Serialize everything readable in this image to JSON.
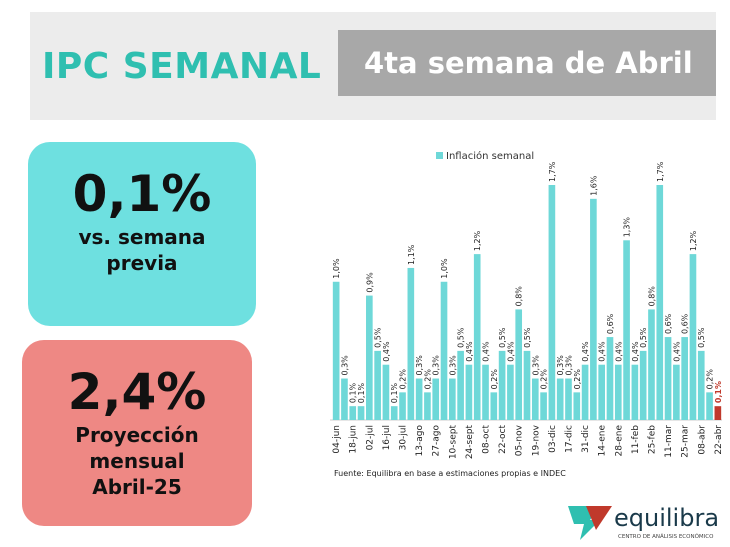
{
  "header": {
    "title": "IPC SEMANAL",
    "subtitle": "4ta semana de Abril"
  },
  "cards": [
    {
      "value": "0,1%",
      "label_lines": [
        "vs. semana",
        "previa"
      ]
    },
    {
      "value": "2,4%",
      "label_lines": [
        "Proyección",
        "mensual",
        "Abril-25"
      ]
    }
  ],
  "chart_data": {
    "type": "bar",
    "legend": "Inflación semanal",
    "color": "#6ed8d8",
    "last_color": "#c0392b",
    "categories": [
      "04-jun",
      null,
      "18-jun",
      null,
      "02-jul",
      null,
      "16-jul",
      null,
      "30-jul",
      null,
      "13-ago",
      null,
      "27-ago",
      null,
      "10-sept",
      null,
      "24-sept",
      null,
      "08-oct",
      null,
      "22-oct",
      null,
      "05-nov",
      null,
      "19-nov",
      null,
      "03-dic",
      null,
      "17-dic",
      null,
      "31-dic",
      null,
      "14-ene",
      null,
      "28-ene",
      null,
      "11-feb",
      null,
      "25-feb",
      null,
      "11-mar",
      null,
      "25-mar",
      null,
      "08-abr",
      null,
      "22-abr"
    ],
    "values": [
      1.0,
      0.3,
      0.1,
      0.1,
      0.9,
      0.5,
      0.4,
      0.1,
      0.2,
      1.1,
      0.3,
      0.2,
      0.3,
      1.0,
      0.3,
      0.5,
      0.4,
      1.2,
      0.4,
      0.2,
      0.5,
      0.4,
      0.8,
      0.5,
      0.3,
      0.2,
      1.7,
      0.3,
      0.3,
      0.2,
      0.4,
      1.6,
      0.4,
      0.6,
      0.4,
      1.3,
      0.4,
      0.5,
      0.8,
      1.7,
      0.6,
      0.4,
      0.6,
      1.2,
      0.5,
      0.2,
      0.1
    ],
    "value_labels": [
      "1,0%",
      "0,3%",
      "0,1%",
      "0,1%",
      "0,9%",
      "0,5%",
      "0,4%",
      "0,1%",
      "0,2%",
      "1,1%",
      "0,3%",
      "0,2%",
      "0,3%",
      "1,0%",
      "0,3%",
      "0,5%",
      "0,4%",
      "1,2%",
      "0,4%",
      "0,2%",
      "0,5%",
      "0,4%",
      "0,8%",
      "0,5%",
      "0,3%",
      "0,2%",
      "1,7%",
      "0,3%",
      "0,3%",
      "0,2%",
      "0,4%",
      "1,6%",
      "0,4%",
      "0,6%",
      "0,4%",
      "1,3%",
      "0,4%",
      "0,5%",
      "0,8%",
      "1,7%",
      "0,6%",
      "0,4%",
      "0,6%",
      "1,2%",
      "0,5%",
      "0,2%",
      "0,1%"
    ],
    "source": "Fuente: Equilibra en base a estimaciones propias e INDEC"
  },
  "logo": {
    "name": "equilibra",
    "tagline": "CENTRO DE ANÁLISIS ECONÓMICO"
  }
}
